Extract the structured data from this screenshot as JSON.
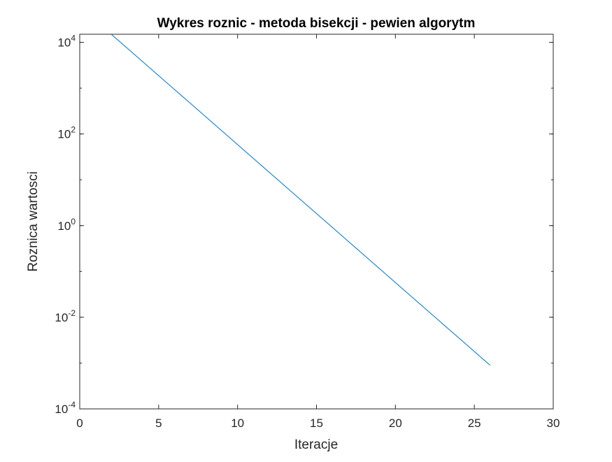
{
  "chart_data": {
    "type": "line",
    "title": "Wykres roznic - metoda bisekcji - pewien algorytm",
    "xlabel": "Iteracje",
    "ylabel": "Roznica wartosci",
    "xlim": [
      0,
      30
    ],
    "ylim": [
      0.0001,
      15000
    ],
    "yscale": "log",
    "x_ticks": [
      0,
      5,
      10,
      15,
      20,
      25,
      30
    ],
    "y_ticks": [
      {
        "value": 0.0001,
        "base": "10",
        "exp": "-4"
      },
      {
        "value": 0.01,
        "base": "10",
        "exp": "-2"
      },
      {
        "value": 1,
        "base": "10",
        "exp": "0"
      },
      {
        "value": 100,
        "base": "10",
        "exp": "2"
      },
      {
        "value": 10000,
        "base": "10",
        "exp": "4"
      }
    ],
    "grid": false,
    "series": [
      {
        "color": "#0072bd",
        "x": [
          2,
          3,
          4,
          5,
          6,
          7,
          8,
          9,
          10,
          11,
          12,
          13,
          14,
          15,
          16,
          17,
          18,
          19,
          20,
          21,
          22,
          23,
          24,
          25,
          26
        ],
        "y": [
          15000,
          7500,
          3750,
          1875,
          937.5,
          468.75,
          234.375,
          117.1875,
          58.59375,
          29.296875,
          14.6484375,
          7.32421875,
          3.662109375,
          1.8310546875,
          0.91552734375,
          0.457763671875,
          0.2288818359375,
          0.11444091796875,
          0.057220458984375,
          0.0286102294921875,
          0.01430511474609375,
          0.007152557373046875,
          0.0035762786865234375,
          0.0017881393432617188,
          0.0008940696716308594
        ]
      }
    ]
  }
}
